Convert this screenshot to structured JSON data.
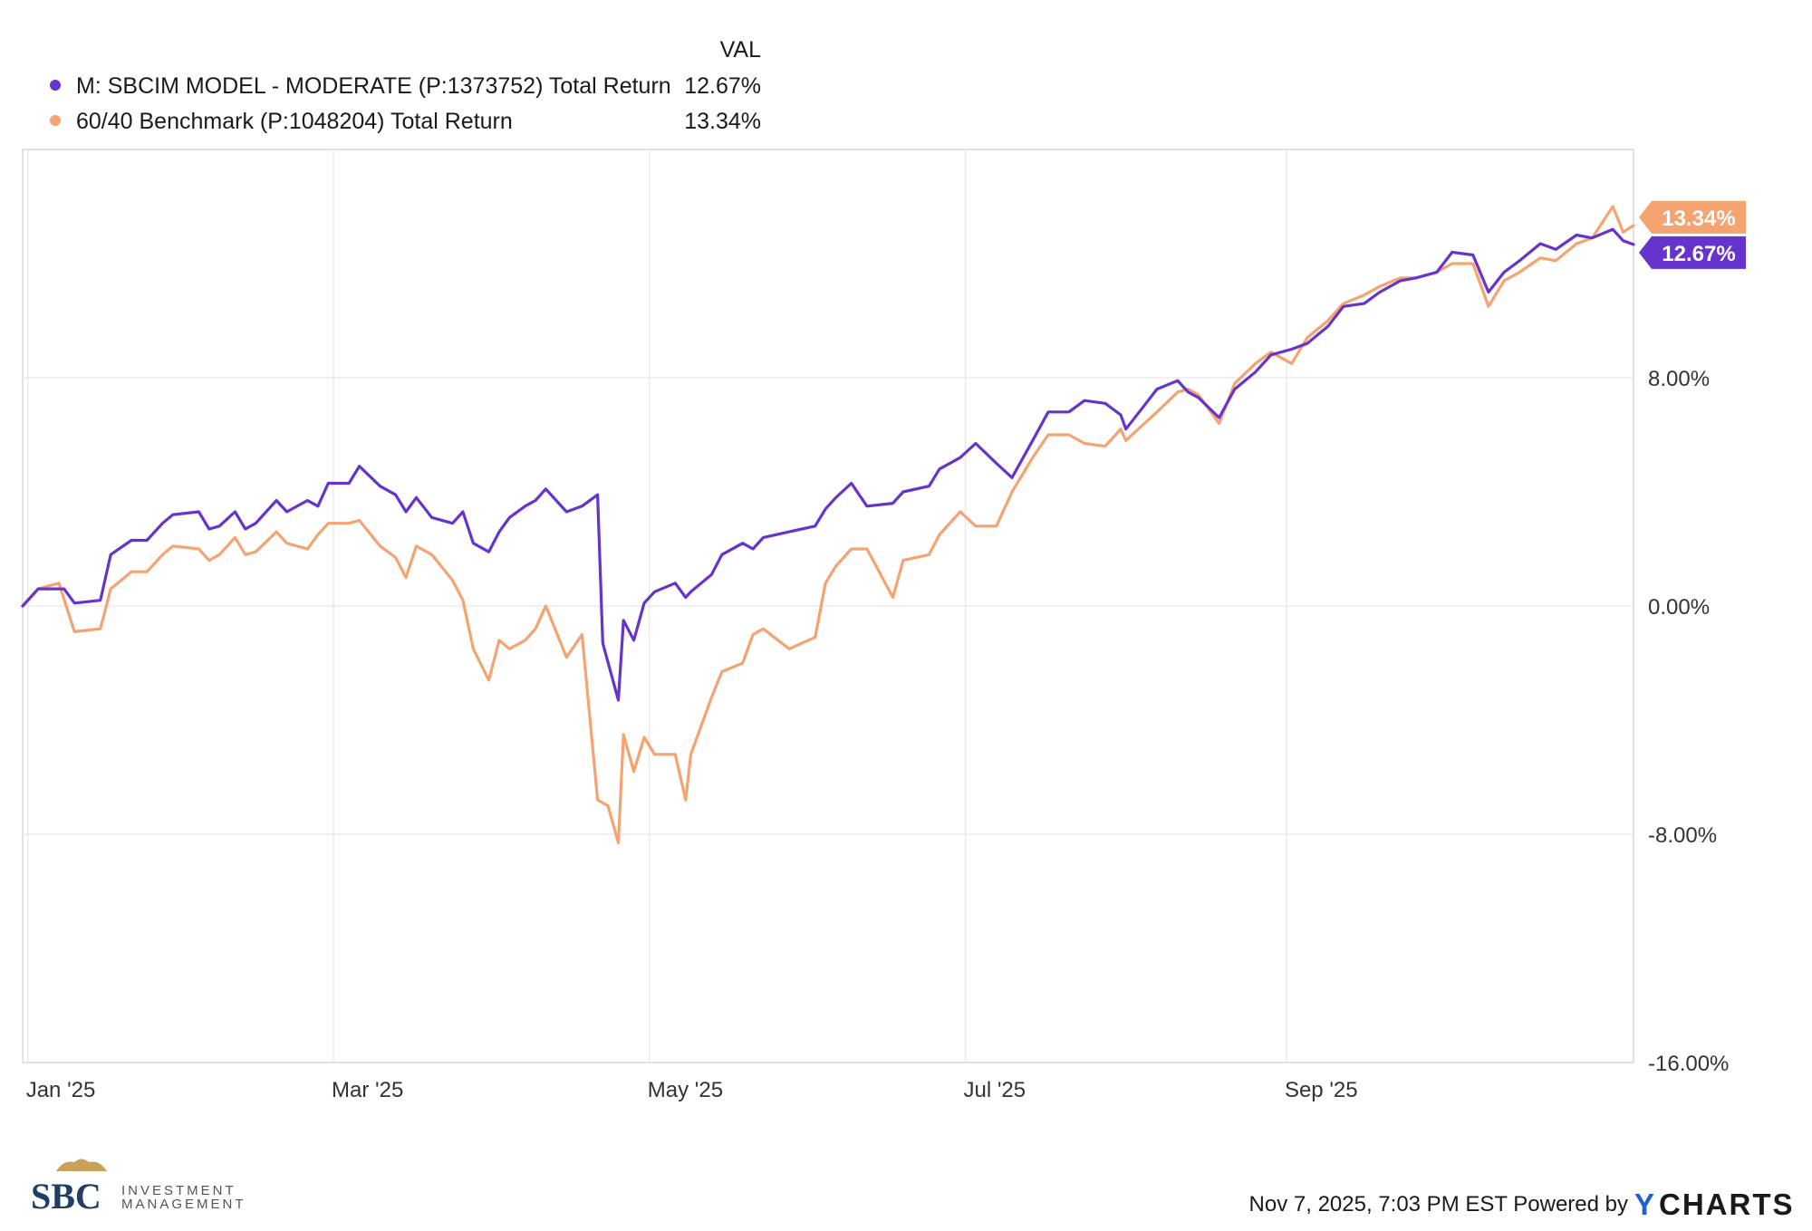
{
  "header": {
    "val_label": "VAL"
  },
  "legend": [
    {
      "name": "M: SBCIM MODEL - MODERATE (P:1373752) Total Return",
      "value": "12.67%",
      "color": "#6633cc"
    },
    {
      "name": "60/40 Benchmark (P:1048204) Total Return",
      "value": "13.34%",
      "color": "#f5a370"
    }
  ],
  "footer": {
    "timestamp": "Nov 7, 2025, 7:03 PM EST Powered by",
    "brand_y": "Y",
    "brand_rest": "CHARTS",
    "logo_sbc": "SBC",
    "logo_line1": "INVESTMENT",
    "logo_line2": "MANAGEMENT"
  },
  "chart_data": {
    "type": "line",
    "x_ticks": [
      "Jan '25",
      "Mar '25",
      "May '25",
      "Jul '25",
      "Sep '25"
    ],
    "x_tick_dates": [
      "2025-01-01",
      "2025-03-01",
      "2025-05-01",
      "2025-07-01",
      "2025-09-01"
    ],
    "x_range": [
      "2024-12-31",
      "2025-11-07"
    ],
    "y_ticks": [
      "8.00%",
      "0.00%",
      "-8.00%",
      "-16.00%"
    ],
    "y_tick_values": [
      8,
      0,
      -8,
      -16
    ],
    "ylim": [
      -16,
      16
    ],
    "y_unit": "%",
    "grid": true,
    "legend_position": "top-left",
    "series": [
      {
        "name": "M: SBCIM MODEL - MODERATE (P:1373752) Total Return",
        "color": "#6633cc",
        "end_label": "12.67%",
        "points": [
          [
            "2024-12-31",
            0
          ],
          [
            "2025-01-03",
            0.6
          ],
          [
            "2025-01-08",
            0.6
          ],
          [
            "2025-01-10",
            0.1
          ],
          [
            "2025-01-15",
            0.2
          ],
          [
            "2025-01-17",
            1.8
          ],
          [
            "2025-01-21",
            2.3
          ],
          [
            "2025-01-24",
            2.3
          ],
          [
            "2025-01-27",
            2.9
          ],
          [
            "2025-01-29",
            3.2
          ],
          [
            "2025-02-03",
            3.3
          ],
          [
            "2025-02-05",
            2.7
          ],
          [
            "2025-02-07",
            2.8
          ],
          [
            "2025-02-10",
            3.3
          ],
          [
            "2025-02-12",
            2.7
          ],
          [
            "2025-02-14",
            2.9
          ],
          [
            "2025-02-18",
            3.7
          ],
          [
            "2025-02-20",
            3.3
          ],
          [
            "2025-02-24",
            3.7
          ],
          [
            "2025-02-26",
            3.5
          ],
          [
            "2025-02-28",
            4.3
          ],
          [
            "2025-03-04",
            4.3
          ],
          [
            "2025-03-06",
            4.9
          ],
          [
            "2025-03-10",
            4.2
          ],
          [
            "2025-03-13",
            3.9
          ],
          [
            "2025-03-15",
            3.3
          ],
          [
            "2025-03-17",
            3.8
          ],
          [
            "2025-03-20",
            3.1
          ],
          [
            "2025-03-24",
            2.9
          ],
          [
            "2025-03-26",
            3.3
          ],
          [
            "2025-03-28",
            2.2
          ],
          [
            "2025-03-31",
            1.9
          ],
          [
            "2025-04-02",
            2.6
          ],
          [
            "2025-04-04",
            3.1
          ],
          [
            "2025-04-07",
            3.5
          ],
          [
            "2025-04-09",
            3.7
          ],
          [
            "2025-04-11",
            4.1
          ],
          [
            "2025-04-15",
            3.3
          ],
          [
            "2025-04-18",
            3.5
          ],
          [
            "2025-04-21",
            3.9
          ],
          [
            "2025-04-22",
            -1.3
          ],
          [
            "2025-04-25",
            -3.3
          ],
          [
            "2025-04-26",
            -0.5
          ],
          [
            "2025-04-28",
            -1.2
          ],
          [
            "2025-04-30",
            0.1
          ],
          [
            "2025-05-02",
            0.5
          ],
          [
            "2025-05-06",
            0.8
          ],
          [
            "2025-05-08",
            0.3
          ],
          [
            "2025-05-09",
            0.5
          ],
          [
            "2025-05-13",
            1.1
          ],
          [
            "2025-05-15",
            1.8
          ],
          [
            "2025-05-19",
            2.2
          ],
          [
            "2025-05-21",
            2.0
          ],
          [
            "2025-05-23",
            2.4
          ],
          [
            "2025-05-28",
            2.6
          ],
          [
            "2025-06-02",
            2.8
          ],
          [
            "2025-06-04",
            3.4
          ],
          [
            "2025-06-06",
            3.8
          ],
          [
            "2025-06-09",
            4.3
          ],
          [
            "2025-06-12",
            3.5
          ],
          [
            "2025-06-17",
            3.6
          ],
          [
            "2025-06-19",
            4.0
          ],
          [
            "2025-06-24",
            4.2
          ],
          [
            "2025-06-26",
            4.8
          ],
          [
            "2025-06-30",
            5.2
          ],
          [
            "2025-07-03",
            5.7
          ],
          [
            "2025-07-07",
            5.0
          ],
          [
            "2025-07-10",
            4.5
          ],
          [
            "2025-07-14",
            5.8
          ],
          [
            "2025-07-17",
            6.8
          ],
          [
            "2025-07-21",
            6.8
          ],
          [
            "2025-07-24",
            7.2
          ],
          [
            "2025-07-28",
            7.1
          ],
          [
            "2025-07-31",
            6.7
          ],
          [
            "2025-08-01",
            6.2
          ],
          [
            "2025-08-04",
            6.9
          ],
          [
            "2025-08-07",
            7.6
          ],
          [
            "2025-08-11",
            7.9
          ],
          [
            "2025-08-13",
            7.5
          ],
          [
            "2025-08-15",
            7.3
          ],
          [
            "2025-08-19",
            6.6
          ],
          [
            "2025-08-22",
            7.6
          ],
          [
            "2025-08-26",
            8.2
          ],
          [
            "2025-08-29",
            8.8
          ],
          [
            "2025-09-02",
            9.0
          ],
          [
            "2025-09-05",
            9.2
          ],
          [
            "2025-09-09",
            9.8
          ],
          [
            "2025-09-12",
            10.5
          ],
          [
            "2025-09-16",
            10.6
          ],
          [
            "2025-09-19",
            11.0
          ],
          [
            "2025-09-23",
            11.4
          ],
          [
            "2025-09-26",
            11.5
          ],
          [
            "2025-09-30",
            11.7
          ],
          [
            "2025-10-03",
            12.4
          ],
          [
            "2025-10-07",
            12.3
          ],
          [
            "2025-10-10",
            11.0
          ],
          [
            "2025-10-13",
            11.7
          ],
          [
            "2025-10-16",
            12.1
          ],
          [
            "2025-10-20",
            12.7
          ],
          [
            "2025-10-23",
            12.5
          ],
          [
            "2025-10-27",
            13.0
          ],
          [
            "2025-10-30",
            12.9
          ],
          [
            "2025-11-03",
            13.2
          ],
          [
            "2025-11-05",
            12.8
          ],
          [
            "2025-11-07",
            12.67
          ]
        ]
      },
      {
        "name": "60/40 Benchmark (P:1048204) Total Return",
        "color": "#f5a370",
        "end_label": "13.34%",
        "points": [
          [
            "2024-12-31",
            0
          ],
          [
            "2025-01-03",
            0.6
          ],
          [
            "2025-01-07",
            0.8
          ],
          [
            "2025-01-10",
            -0.9
          ],
          [
            "2025-01-15",
            -0.8
          ],
          [
            "2025-01-17",
            0.6
          ],
          [
            "2025-01-21",
            1.2
          ],
          [
            "2025-01-24",
            1.2
          ],
          [
            "2025-01-27",
            1.8
          ],
          [
            "2025-01-29",
            2.1
          ],
          [
            "2025-02-03",
            2.0
          ],
          [
            "2025-02-05",
            1.6
          ],
          [
            "2025-02-07",
            1.8
          ],
          [
            "2025-02-10",
            2.4
          ],
          [
            "2025-02-12",
            1.8
          ],
          [
            "2025-02-14",
            1.9
          ],
          [
            "2025-02-18",
            2.6
          ],
          [
            "2025-02-20",
            2.2
          ],
          [
            "2025-02-24",
            2.0
          ],
          [
            "2025-02-26",
            2.5
          ],
          [
            "2025-02-28",
            2.9
          ],
          [
            "2025-03-04",
            2.9
          ],
          [
            "2025-03-06",
            3.0
          ],
          [
            "2025-03-10",
            2.1
          ],
          [
            "2025-03-13",
            1.7
          ],
          [
            "2025-03-15",
            1.0
          ],
          [
            "2025-03-17",
            2.1
          ],
          [
            "2025-03-20",
            1.8
          ],
          [
            "2025-03-24",
            0.9
          ],
          [
            "2025-03-26",
            0.2
          ],
          [
            "2025-03-28",
            -1.5
          ],
          [
            "2025-03-31",
            -2.6
          ],
          [
            "2025-04-02",
            -1.2
          ],
          [
            "2025-04-04",
            -1.5
          ],
          [
            "2025-04-07",
            -1.2
          ],
          [
            "2025-04-09",
            -0.8
          ],
          [
            "2025-04-11",
            0.0
          ],
          [
            "2025-04-15",
            -1.8
          ],
          [
            "2025-04-18",
            -1.0
          ],
          [
            "2025-04-21",
            -6.8
          ],
          [
            "2025-04-23",
            -7.0
          ],
          [
            "2025-04-25",
            -8.3
          ],
          [
            "2025-04-26",
            -4.5
          ],
          [
            "2025-04-28",
            -5.8
          ],
          [
            "2025-04-30",
            -4.6
          ],
          [
            "2025-05-02",
            -5.2
          ],
          [
            "2025-05-06",
            -5.2
          ],
          [
            "2025-05-08",
            -6.8
          ],
          [
            "2025-05-09",
            -5.2
          ],
          [
            "2025-05-13",
            -3.2
          ],
          [
            "2025-05-15",
            -2.3
          ],
          [
            "2025-05-19",
            -2.0
          ],
          [
            "2025-05-21",
            -1.0
          ],
          [
            "2025-05-23",
            -0.8
          ],
          [
            "2025-05-28",
            -1.5
          ],
          [
            "2025-06-02",
            -1.1
          ],
          [
            "2025-06-04",
            0.8
          ],
          [
            "2025-06-06",
            1.4
          ],
          [
            "2025-06-09",
            2.0
          ],
          [
            "2025-06-12",
            2.0
          ],
          [
            "2025-06-17",
            0.3
          ],
          [
            "2025-06-19",
            1.6
          ],
          [
            "2025-06-24",
            1.8
          ],
          [
            "2025-06-26",
            2.5
          ],
          [
            "2025-06-30",
            3.3
          ],
          [
            "2025-07-03",
            2.8
          ],
          [
            "2025-07-07",
            2.8
          ],
          [
            "2025-07-10",
            4.0
          ],
          [
            "2025-07-14",
            5.2
          ],
          [
            "2025-07-17",
            6.0
          ],
          [
            "2025-07-21",
            6.0
          ],
          [
            "2025-07-24",
            5.7
          ],
          [
            "2025-07-28",
            5.6
          ],
          [
            "2025-07-31",
            6.2
          ],
          [
            "2025-08-01",
            5.8
          ],
          [
            "2025-08-04",
            6.3
          ],
          [
            "2025-08-07",
            6.8
          ],
          [
            "2025-08-11",
            7.5
          ],
          [
            "2025-08-13",
            7.6
          ],
          [
            "2025-08-15",
            7.4
          ],
          [
            "2025-08-19",
            6.4
          ],
          [
            "2025-08-22",
            7.8
          ],
          [
            "2025-08-26",
            8.5
          ],
          [
            "2025-08-29",
            8.9
          ],
          [
            "2025-09-02",
            8.5
          ],
          [
            "2025-09-05",
            9.4
          ],
          [
            "2025-09-09",
            10.0
          ],
          [
            "2025-09-12",
            10.6
          ],
          [
            "2025-09-16",
            10.9
          ],
          [
            "2025-09-19",
            11.2
          ],
          [
            "2025-09-23",
            11.5
          ],
          [
            "2025-09-26",
            11.5
          ],
          [
            "2025-09-30",
            11.7
          ],
          [
            "2025-10-03",
            12.0
          ],
          [
            "2025-10-07",
            12.0
          ],
          [
            "2025-10-10",
            10.5
          ],
          [
            "2025-10-13",
            11.4
          ],
          [
            "2025-10-16",
            11.7
          ],
          [
            "2025-10-20",
            12.2
          ],
          [
            "2025-10-23",
            12.1
          ],
          [
            "2025-10-27",
            12.7
          ],
          [
            "2025-10-30",
            12.9
          ],
          [
            "2025-11-03",
            14.0
          ],
          [
            "2025-11-05",
            13.1
          ],
          [
            "2025-11-07",
            13.34
          ]
        ]
      }
    ]
  }
}
